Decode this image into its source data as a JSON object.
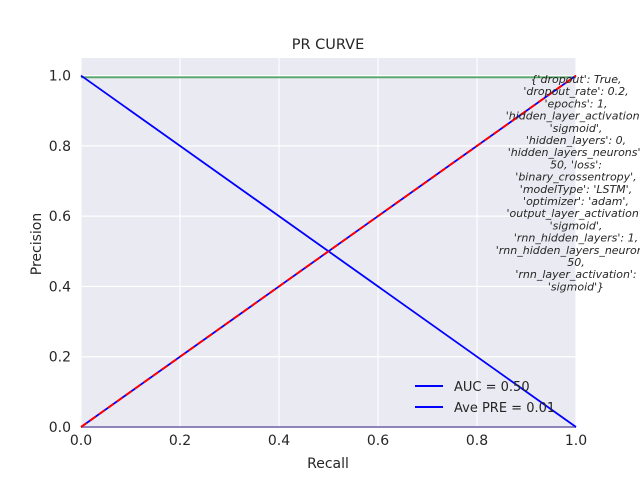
{
  "chart_data": {
    "type": "line",
    "title": "PR CURVE",
    "xlabel": "Recall",
    "ylabel": "Precision",
    "xlim": [
      0.0,
      1.0
    ],
    "ylim": [
      0.0,
      1.05
    ],
    "x_ticks": [
      "0.0",
      "0.2",
      "0.4",
      "0.6",
      "0.8",
      "1.0"
    ],
    "y_ticks": [
      "0.0",
      "0.2",
      "0.4",
      "0.6",
      "0.8",
      "1.0"
    ],
    "grid": true,
    "background": "#eaeaf2",
    "series": [
      {
        "name": "AUC = 0.50",
        "color": "#0000ff",
        "style": "solid",
        "x": [
          0.0,
          1.0
        ],
        "y": [
          1.0,
          0.0
        ]
      },
      {
        "name": "Ave PRE = 0.01",
        "color": "#0000ff",
        "style": "solid",
        "x": [
          0.0,
          1.0
        ],
        "y": [
          0.0,
          1.0
        ]
      },
      {
        "color": "#ff0000",
        "style": "dashed",
        "x": [
          0.0,
          1.0
        ],
        "y": [
          0.0,
          1.0
        ]
      },
      {
        "color": "#55a868",
        "style": "solid",
        "x": [
          0.0,
          1.0
        ],
        "y": [
          0.995,
          0.995
        ]
      },
      {
        "color": "#8172b2",
        "style": "solid",
        "x": [
          0.0,
          1.0
        ],
        "y": [
          0.0,
          0.0
        ]
      }
    ],
    "legend": {
      "placement": "lower-right",
      "entries": [
        "AUC = 0.50",
        "Ave PRE = 0.01"
      ]
    },
    "annotation": {
      "lines": [
        "{'dropout': True,",
        "'dropout_rate': 0.2,",
        "'epochs': 1,",
        "'hidden_layer_activation':",
        "'sigmoid',",
        "'hidden_layers': 0,",
        "'hidden_layers_neurons':",
        "50, 'loss':",
        "'binary_crossentropy',",
        "'modelType': 'LSTM',",
        "'optimizer': 'adam',",
        "'output_layer_activation':",
        "'sigmoid',",
        "'rnn_hidden_layers': 1,",
        "'rnn_hidden_layers_neurons':",
        "50,",
        "'rnn_layer_activation':",
        "'sigmoid'}"
      ]
    }
  }
}
